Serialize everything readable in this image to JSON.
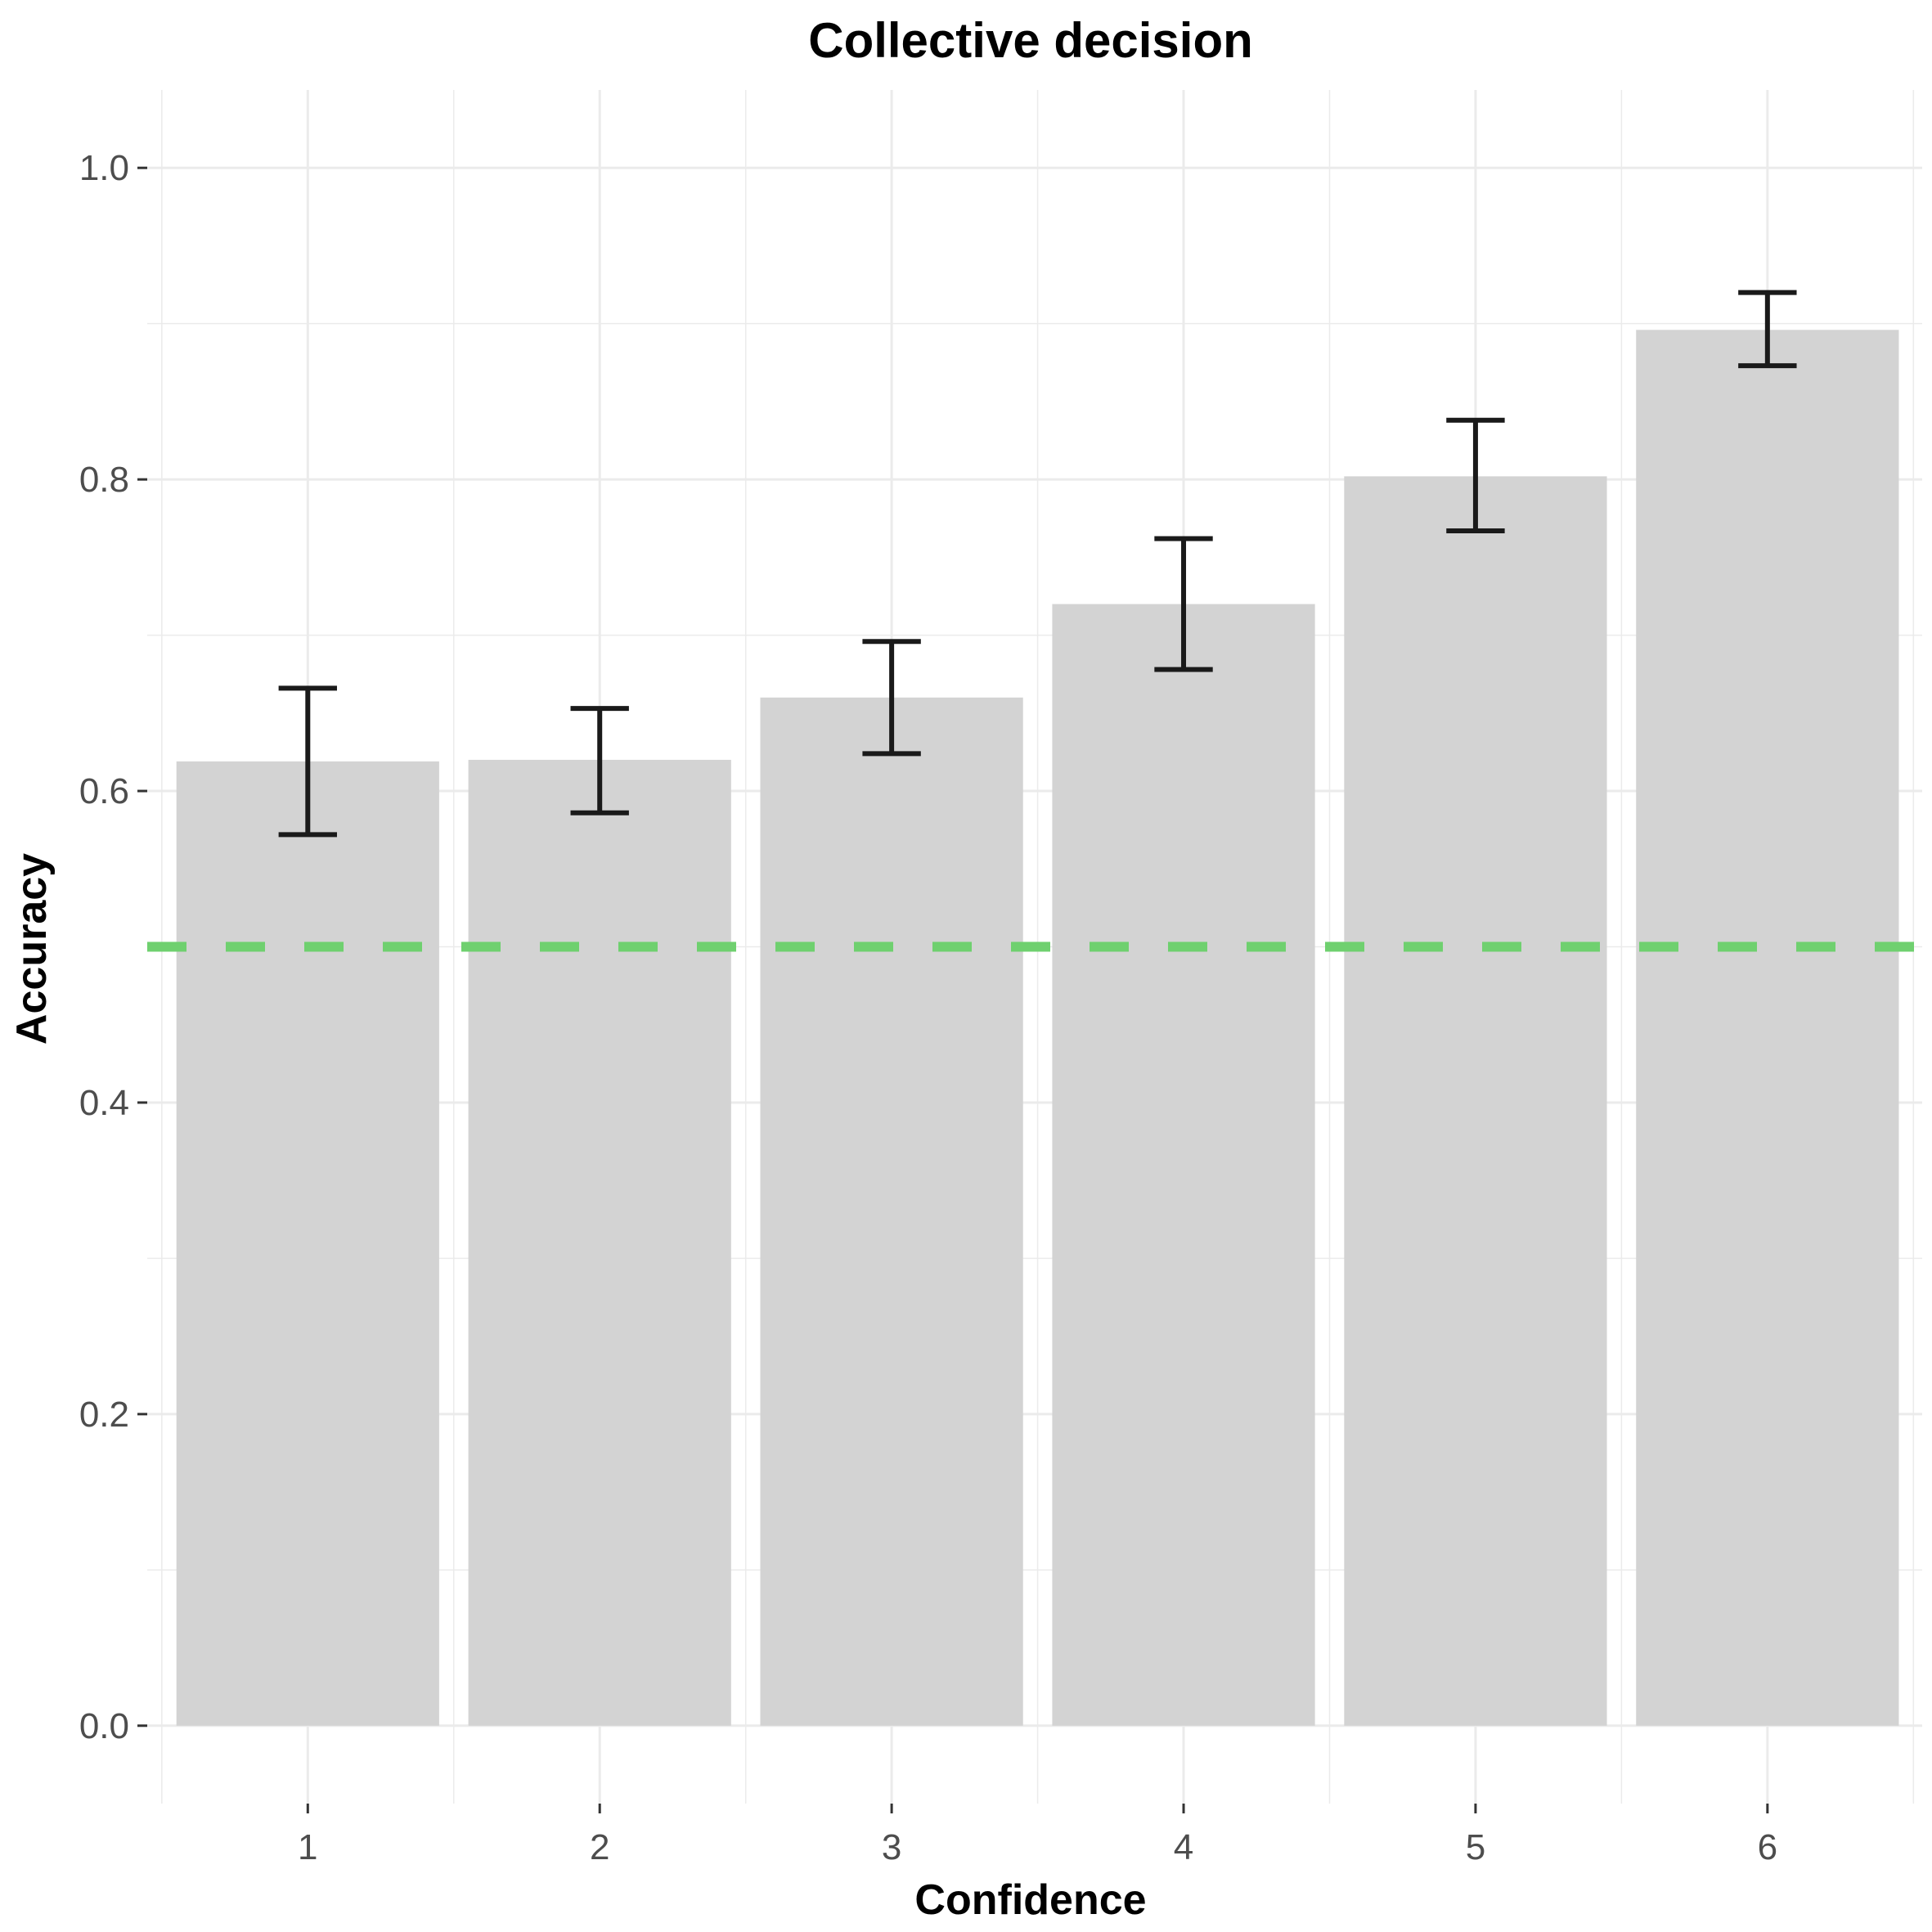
{
  "chart_data": {
    "type": "bar",
    "title": "Collective decision",
    "xlabel": "Confidence",
    "ylabel": "Accuracy",
    "categories": [
      "1",
      "2",
      "3",
      "4",
      "5",
      "6"
    ],
    "values": [
      0.619,
      0.62,
      0.66,
      0.72,
      0.802,
      0.896
    ],
    "error_bars": [
      {
        "low": 0.572,
        "high": 0.666
      },
      {
        "low": 0.586,
        "high": 0.653
      },
      {
        "low": 0.624,
        "high": 0.696
      },
      {
        "low": 0.678,
        "high": 0.762
      },
      {
        "low": 0.767,
        "high": 0.838
      },
      {
        "low": 0.873,
        "high": 0.92
      }
    ],
    "ylim": [
      -0.05,
      1.05
    ],
    "yticks": [
      "0.0",
      "0.2",
      "0.4",
      "0.6",
      "0.8",
      "1.0"
    ],
    "reference_line": {
      "y": 0.5,
      "style": "dashed",
      "color": "#6fd06f"
    },
    "bar_color": "#d3d3d3",
    "grid": true,
    "background": "#ffffff"
  }
}
